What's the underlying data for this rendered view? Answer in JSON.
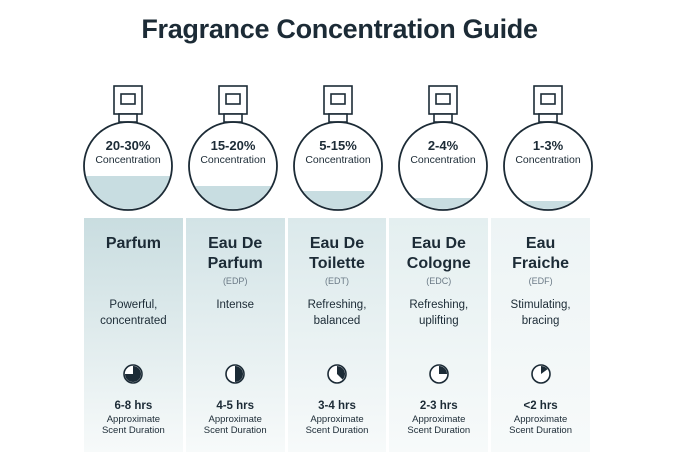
{
  "title": "Fragrance Concentration Guide",
  "colors": {
    "text": "#1c2b36",
    "liquid": "#c8dde1",
    "column_top": [
      "#c9dde0",
      "#d2e3e6",
      "#dbe9eb",
      "#e4eff0",
      "#edf4f5"
    ],
    "column_bottom": "#f7fafa"
  },
  "items": [
    {
      "concentration": "20-30%",
      "concentration_label": "Concentration",
      "fill_fraction": 0.3,
      "name_line1": "Parfum",
      "name_line2": "",
      "abbreviation": "",
      "desc_line1": "Powerful,",
      "desc_line2": "concentrated",
      "timer_icon": "timer-icon",
      "timer_fraction": 0.75,
      "hours": "6-8 hrs",
      "duration_line1": "Approximate",
      "duration_line2": "Scent Duration"
    },
    {
      "concentration": "15-20%",
      "concentration_label": "Concentration",
      "fill_fraction": 0.2,
      "name_line1": "Eau De",
      "name_line2": "Parfum",
      "abbreviation": "(EDP)",
      "desc_line1": "Intense",
      "desc_line2": "",
      "timer_icon": "timer-icon",
      "timer_fraction": 0.5,
      "hours": "4-5 hrs",
      "duration_line1": "Approximate",
      "duration_line2": "Scent Duration"
    },
    {
      "concentration": "5-15%",
      "concentration_label": "Concentration",
      "fill_fraction": 0.15,
      "name_line1": "Eau De",
      "name_line2": "Toilette",
      "abbreviation": "(EDT)",
      "desc_line1": "Refreshing,",
      "desc_line2": "balanced",
      "timer_icon": "timer-icon",
      "timer_fraction": 0.375,
      "hours": "3-4 hrs",
      "duration_line1": "Approximate",
      "duration_line2": "Scent Duration"
    },
    {
      "concentration": "2-4%",
      "concentration_label": "Concentration",
      "fill_fraction": 0.08,
      "name_line1": "Eau De",
      "name_line2": "Cologne",
      "abbreviation": "(EDC)",
      "desc_line1": "Refreshing,",
      "desc_line2": "uplifting",
      "timer_icon": "timer-icon",
      "timer_fraction": 0.25,
      "hours": "2-3 hrs",
      "duration_line1": "Approximate",
      "duration_line2": "Scent Duration"
    },
    {
      "concentration": "1-3%",
      "concentration_label": "Concentration",
      "fill_fraction": 0.05,
      "name_line1": "Eau",
      "name_line2": "Fraiche",
      "abbreviation": "(EDF)",
      "desc_line1": "Stimulating,",
      "desc_line2": "bracing",
      "timer_icon": "timer-icon",
      "timer_fraction": 0.15,
      "hours": "<2 hrs",
      "duration_line1": "Approximate",
      "duration_line2": "Scent Duration"
    }
  ]
}
